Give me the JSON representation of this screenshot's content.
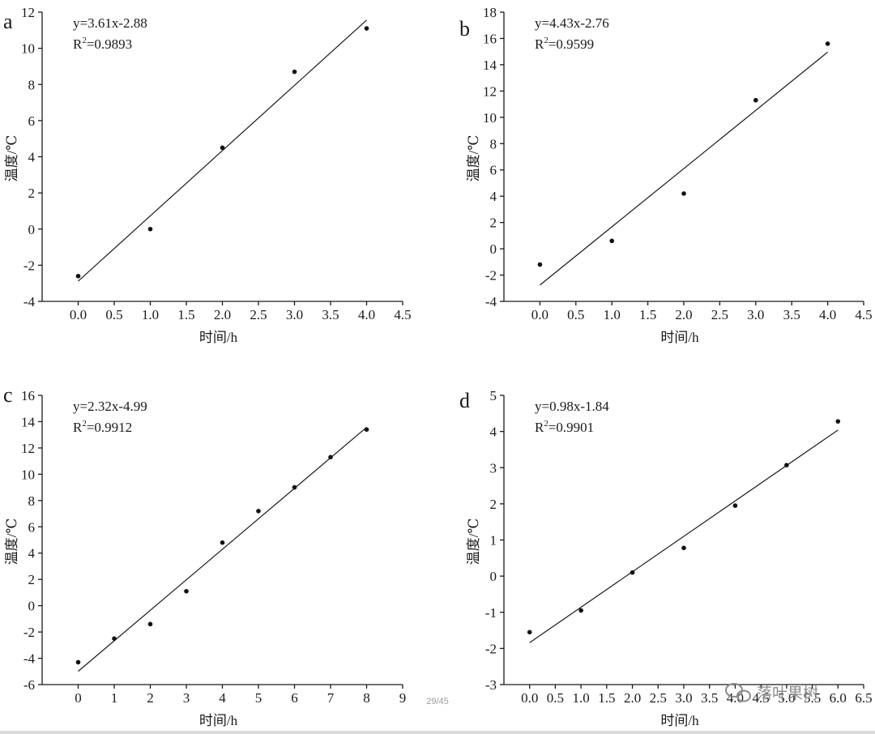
{
  "chart_data": [
    {
      "type": "scatter",
      "panel": "a",
      "equation": "y=3.61x-2.88",
      "r2_label": "R",
      "r2_sup": "2",
      "r2_value": "=0.9893",
      "xlabel": "时间/h",
      "ylabel": "温度/℃",
      "xlim": [
        -0.5,
        4.5
      ],
      "ylim": [
        -4,
        12
      ],
      "xticks": [
        0,
        0.5,
        1,
        1.5,
        2,
        2.5,
        3,
        3.5,
        4,
        4.5
      ],
      "xtick_labels": [
        "0.0",
        "0.5",
        "1.0",
        "1.5",
        "2.0",
        "2.5",
        "3.0",
        "3.5",
        "4.0",
        "4.5"
      ],
      "yticks": [
        -4,
        -2,
        0,
        2,
        4,
        6,
        8,
        10,
        12
      ],
      "ytick_labels": [
        "-4",
        "-2",
        "0",
        "2",
        "4",
        "6",
        "8",
        "10",
        "12"
      ],
      "points": [
        [
          0,
          -2.6
        ],
        [
          1,
          0
        ],
        [
          2,
          4.5
        ],
        [
          3,
          8.7
        ],
        [
          4,
          11.1
        ]
      ],
      "fit": {
        "slope": 3.61,
        "intercept": -2.88,
        "x_range": [
          0,
          4
        ]
      }
    },
    {
      "type": "scatter",
      "panel": "b",
      "equation": "y=4.43x-2.76",
      "r2_label": "R",
      "r2_sup": "2",
      "r2_value": "=0.9599",
      "xlabel": "时间/h",
      "ylabel": "温度/℃",
      "xlim": [
        -0.5,
        4.5
      ],
      "ylim": [
        -4,
        18
      ],
      "xticks": [
        0,
        0.5,
        1,
        1.5,
        2,
        2.5,
        3,
        3.5,
        4,
        4.5
      ],
      "xtick_labels": [
        "0.0",
        "0.5",
        "1.0",
        "1.5",
        "2.0",
        "2.5",
        "3.0",
        "3.5",
        "4.0",
        "4.5"
      ],
      "yticks": [
        -4,
        -2,
        0,
        2,
        4,
        6,
        8,
        10,
        12,
        14,
        16,
        18
      ],
      "ytick_labels": [
        "-4",
        "-2",
        "0",
        "2",
        "4",
        "6",
        "8",
        "10",
        "12",
        "14",
        "16",
        "18"
      ],
      "points": [
        [
          0,
          -1.2
        ],
        [
          1,
          0.6
        ],
        [
          2,
          4.2
        ],
        [
          3,
          11.3
        ],
        [
          4,
          15.6
        ]
      ],
      "fit": {
        "slope": 4.43,
        "intercept": -2.76,
        "x_range": [
          0,
          4
        ]
      }
    },
    {
      "type": "scatter",
      "panel": "c",
      "equation": "y=2.32x-4.99",
      "r2_label": "R",
      "r2_sup": "2",
      "r2_value": "=0.9912",
      "xlabel": "时间/h",
      "ylabel": "温度/℃",
      "xlim": [
        -1,
        9
      ],
      "ylim": [
        -6,
        16
      ],
      "xticks": [
        0,
        1,
        2,
        3,
        4,
        5,
        6,
        7,
        8,
        9
      ],
      "xtick_labels": [
        "0",
        "1",
        "2",
        "3",
        "4",
        "5",
        "6",
        "7",
        "8",
        "9"
      ],
      "yticks": [
        -6,
        -4,
        -2,
        0,
        2,
        4,
        6,
        8,
        10,
        12,
        14,
        16
      ],
      "ytick_labels": [
        "-6",
        "-4",
        "-2",
        "0",
        "2",
        "4",
        "6",
        "8",
        "10",
        "12",
        "14",
        "16"
      ],
      "points": [
        [
          0,
          -4.3
        ],
        [
          1,
          -2.5
        ],
        [
          2,
          -1.4
        ],
        [
          3,
          1.1
        ],
        [
          4,
          4.8
        ],
        [
          5,
          7.2
        ],
        [
          6,
          9.0
        ],
        [
          7,
          11.3
        ],
        [
          8,
          13.4
        ]
      ],
      "fit": {
        "slope": 2.32,
        "intercept": -4.99,
        "x_range": [
          0,
          8
        ]
      }
    },
    {
      "type": "scatter",
      "panel": "d",
      "equation": "y=0.98x-1.84",
      "r2_label": "R",
      "r2_sup": "2",
      "r2_value": "=0.9901",
      "xlabel": "时间/h",
      "ylabel": "温度/℃",
      "xlim": [
        -0.5,
        6.5
      ],
      "ylim": [
        -3,
        5
      ],
      "xticks": [
        0,
        0.5,
        1,
        1.5,
        2,
        2.5,
        3,
        3.5,
        4,
        4.5,
        5,
        5.5,
        6,
        6.5
      ],
      "xtick_labels": [
        "0.0",
        "0.5",
        "1.0",
        "1.5",
        "2.0",
        "2.5",
        "3.0",
        "3.5",
        "4.0",
        "4.5",
        "5.0",
        "5.5",
        "6.0",
        "6.5"
      ],
      "yticks": [
        -3,
        -2,
        -1,
        0,
        1,
        2,
        3,
        4,
        5
      ],
      "ytick_labels": [
        "-3",
        "-2",
        "-1",
        "0",
        "1",
        "2",
        "3",
        "4",
        "5"
      ],
      "points": [
        [
          0,
          -1.55
        ],
        [
          1,
          -0.95
        ],
        [
          2,
          0.1
        ],
        [
          3,
          0.78
        ],
        [
          4,
          1.95
        ],
        [
          5,
          3.07
        ],
        [
          6,
          4.28
        ]
      ],
      "fit": {
        "slope": 0.98,
        "intercept": -1.84,
        "x_range": [
          0,
          6
        ]
      }
    }
  ],
  "page_indicator": "29/45",
  "watermark": "落叶果树"
}
